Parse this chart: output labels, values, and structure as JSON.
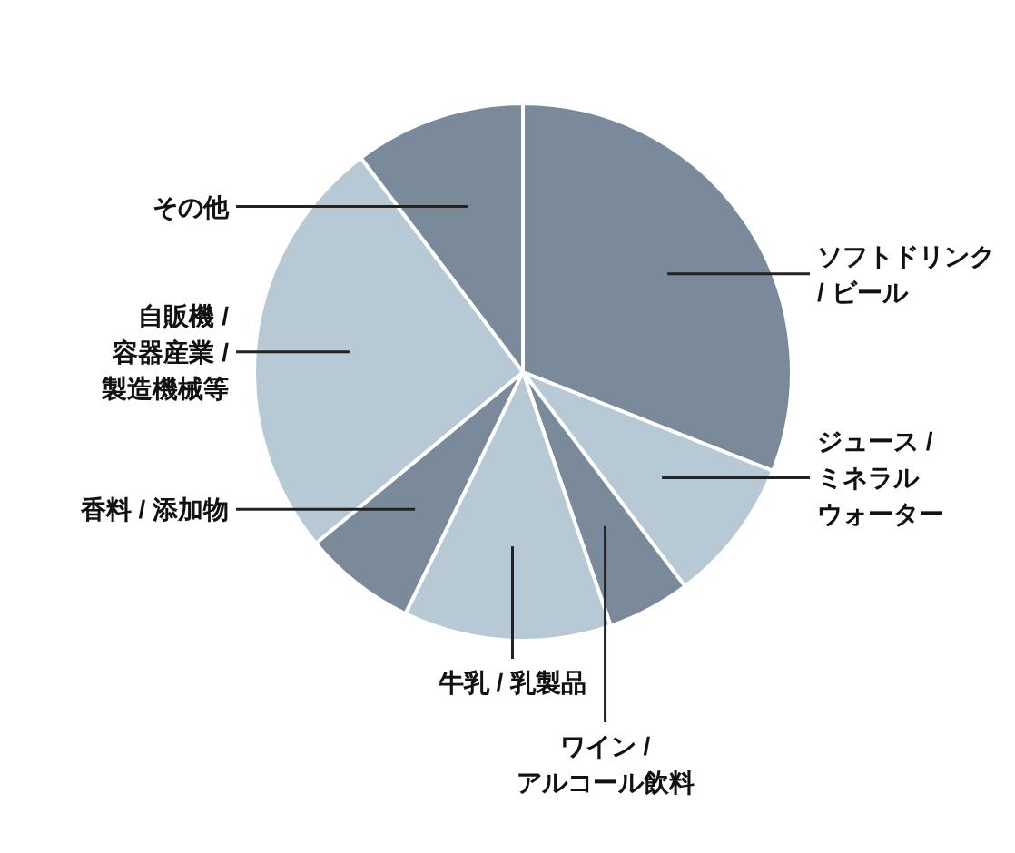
{
  "chart_data": {
    "type": "pie",
    "categories": [
      "ソフトドリンク\n/ ビール",
      "ジュース /\nミネラルウォーター",
      "ワイン /\nアルコール飲料",
      "牛乳 / 乳製品",
      "香料 / 添加物",
      "自販機 /\n容器産業 /\n製造機械等",
      "その他"
    ],
    "values": [
      31,
      8.7,
      5,
      12.5,
      6.8,
      25.7,
      10.3
    ],
    "colors": [
      "#7a8a9a",
      "#b6c9d5",
      "#7a8a9a",
      "#b6c9d5",
      "#7a8a9a",
      "#b6c9d5",
      "#7a8a9a"
    ]
  }
}
